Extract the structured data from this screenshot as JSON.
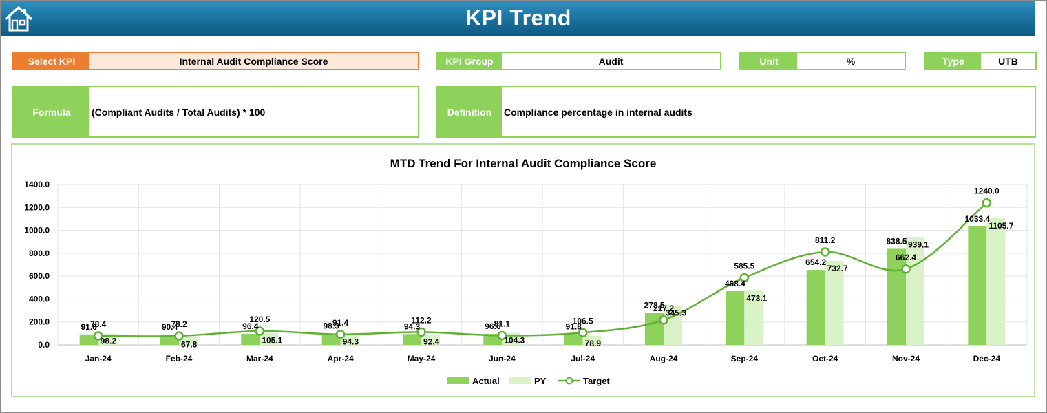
{
  "header": {
    "title": "KPI Trend",
    "home_icon": "home-icon"
  },
  "fields": {
    "select_kpi": {
      "label": "Select KPI",
      "value": "Internal Audit Compliance Score"
    },
    "kpi_group": {
      "label": "KPI Group",
      "value": "Audit"
    },
    "unit": {
      "label": "Unit",
      "value": "%"
    },
    "type": {
      "label": "Type",
      "value": "UTB"
    },
    "formula": {
      "label": "Formula",
      "value": "(Compliant Audits / Total Audits) * 100"
    },
    "definition": {
      "label": "Definition",
      "value": "Compliance percentage in internal audits"
    }
  },
  "colors": {
    "orange": "#ed7d31",
    "green": "#8ed15b",
    "light_green": "#d9f2c8",
    "target": "#5fb134",
    "banner": "#1a6f9c"
  },
  "chart_data": {
    "type": "bar",
    "title": "MTD Trend For Internal Audit Compliance Score",
    "categories": [
      "Jan-24",
      "Feb-24",
      "Mar-24",
      "Apr-24",
      "May-24",
      "Jun-24",
      "Jul-24",
      "Aug-24",
      "Sep-24",
      "Oct-24",
      "Nov-24",
      "Dec-24"
    ],
    "ylim": [
      0,
      1400
    ],
    "yticks": [
      "0.0",
      "200.0",
      "400.0",
      "600.0",
      "800.0",
      "1000.0",
      "1200.0",
      "1400.0"
    ],
    "series": [
      {
        "name": "Actual",
        "type": "bar",
        "values": [
          91.6,
          90.4,
          96.4,
          98.3,
          94.3,
          96.6,
          91.8,
          278.5,
          468.4,
          654.2,
          838.5,
          1033.4
        ],
        "labels": [
          "91.6",
          "90.4",
          "96.4",
          "98.3",
          "94.3",
          "96.6",
          "91.8",
          "278.5",
          "468.4",
          "654.2",
          "838.5",
          "1033.4"
        ]
      },
      {
        "name": "PY",
        "type": "bar",
        "values": [
          98.2,
          67.8,
          105.1,
          94.3,
          92.4,
          104.3,
          78.9,
          345.3,
          473.1,
          732.7,
          939.1,
          1105.7
        ],
        "labels": [
          "98.2",
          "67.8",
          "105.1",
          "94.3",
          "92.4",
          "104.3",
          "78.9",
          "345.3",
          "473.1",
          "732.7",
          "939.1",
          "1105.7"
        ]
      },
      {
        "name": "Target",
        "type": "line",
        "values": [
          78.4,
          78.2,
          120.5,
          91.4,
          112.2,
          81.1,
          106.5,
          217.2,
          585.5,
          811.2,
          662.4,
          1240.0
        ],
        "labels": [
          "78.4",
          "78.2",
          "120.5",
          "91.4",
          "112.2",
          "81.1",
          "106.5",
          "217.2",
          "585.5",
          "811.2",
          "662.4",
          "1240.0"
        ]
      }
    ],
    "legend_position": "bottom",
    "grid": true
  }
}
